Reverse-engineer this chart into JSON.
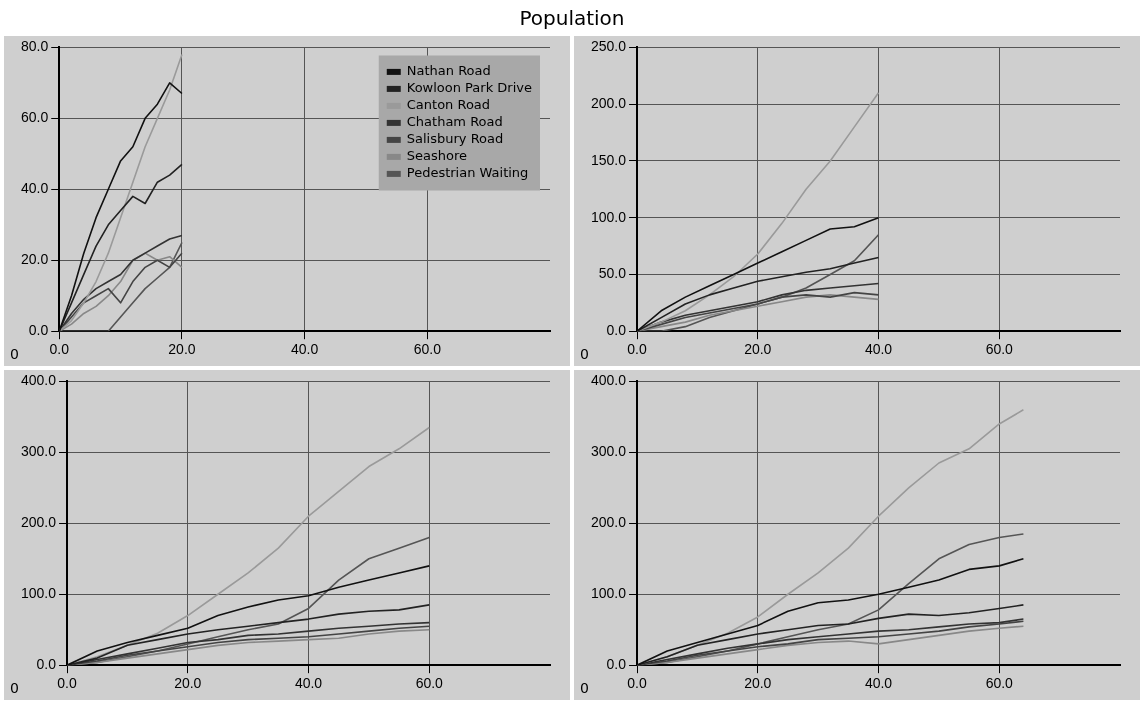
{
  "chart_data": [
    {
      "type": "line",
      "title": "Population",
      "annotations": [
        "0"
      ],
      "x": [
        0,
        2,
        4,
        6,
        8,
        10,
        12,
        14,
        16,
        18,
        20
      ],
      "xlim": [
        0,
        80
      ],
      "xticks": [
        {
          "value": 0,
          "label": "0.0"
        },
        {
          "value": 20,
          "label": "20.0"
        },
        {
          "value": 40,
          "label": "40.0"
        },
        {
          "value": 60,
          "label": "60.0"
        }
      ],
      "ylim": [
        0,
        80
      ],
      "yticks": [
        {
          "value": 0,
          "label": "0.0"
        },
        {
          "value": 20,
          "label": "20.0"
        },
        {
          "value": 40,
          "label": "40.0"
        },
        {
          "value": 60,
          "label": "60.0"
        },
        {
          "value": 80,
          "label": "80.0"
        }
      ],
      "grid": true,
      "legend": "top right",
      "series": [
        {
          "name": "Nathan Road",
          "color": "#111111",
          "values": [
            0,
            10,
            22,
            32,
            40,
            48,
            52,
            60,
            64,
            70,
            67
          ]
        },
        {
          "name": "Kowloon Park Drive",
          "color": "#222222",
          "values": [
            0,
            8,
            16,
            24,
            30,
            34,
            38,
            36,
            42,
            44,
            47
          ]
        },
        {
          "name": "Canton Road",
          "color": "#9a9a9a",
          "values": [
            0,
            3,
            8,
            14,
            22,
            32,
            42,
            52,
            60,
            68,
            78
          ]
        },
        {
          "name": "Chatham Road",
          "color": "#333333",
          "values": [
            0,
            5,
            9,
            12,
            14,
            16,
            20,
            22,
            24,
            26,
            27
          ]
        },
        {
          "name": "Salisbury Road",
          "color": "#444444",
          "values": [
            0,
            4,
            8,
            10,
            12,
            8,
            14,
            18,
            20,
            18,
            22
          ]
        },
        {
          "name": "Seashore",
          "color": "#888888",
          "values": [
            0,
            2,
            5,
            7,
            10,
            14,
            20,
            22,
            20,
            21,
            18
          ]
        },
        {
          "name": "Pedestrian Waiting",
          "color": "#555555",
          "values": [
            0,
            0,
            0,
            0,
            0,
            4,
            8,
            12,
            15,
            18,
            25
          ]
        }
      ]
    },
    {
      "type": "line",
      "annotations": [
        "0"
      ],
      "x": [
        0,
        4,
        8,
        12,
        16,
        20,
        24,
        28,
        32,
        36,
        40
      ],
      "xlim": [
        0,
        80
      ],
      "xticks": [
        {
          "value": 0,
          "label": "0.0"
        },
        {
          "value": 20,
          "label": "20.0"
        },
        {
          "value": 40,
          "label": "40.0"
        },
        {
          "value": 60,
          "label": "60.0"
        }
      ],
      "ylim": [
        0,
        250
      ],
      "yticks": [
        {
          "value": 0,
          "label": "0.0"
        },
        {
          "value": 50,
          "label": "50.0"
        },
        {
          "value": 100,
          "label": "100.0"
        },
        {
          "value": 150,
          "label": "150.0"
        },
        {
          "value": 200,
          "label": "200.0"
        },
        {
          "value": 250,
          "label": "250.0"
        }
      ],
      "grid": true,
      "series": [
        {
          "color": "#111111",
          "values": [
            0,
            18,
            30,
            40,
            50,
            60,
            70,
            80,
            90,
            92,
            100
          ]
        },
        {
          "color": "#222222",
          "values": [
            0,
            12,
            24,
            32,
            38,
            44,
            48,
            52,
            55,
            60,
            65
          ]
        },
        {
          "color": "#9a9a9a",
          "values": [
            0,
            8,
            18,
            32,
            48,
            68,
            95,
            125,
            150,
            180,
            210
          ]
        },
        {
          "color": "#333333",
          "values": [
            0,
            8,
            14,
            18,
            22,
            26,
            32,
            36,
            38,
            40,
            42
          ]
        },
        {
          "color": "#444444",
          "values": [
            0,
            6,
            12,
            16,
            20,
            24,
            30,
            32,
            30,
            34,
            32
          ]
        },
        {
          "color": "#888888",
          "values": [
            0,
            4,
            8,
            14,
            18,
            22,
            26,
            30,
            32,
            30,
            28
          ]
        },
        {
          "color": "#555555",
          "values": [
            0,
            0,
            4,
            12,
            18,
            24,
            30,
            38,
            50,
            62,
            85
          ]
        }
      ]
    },
    {
      "type": "line",
      "annotations": [
        "0"
      ],
      "x": [
        0,
        5,
        10,
        15,
        20,
        25,
        30,
        35,
        40,
        45,
        50,
        55,
        60
      ],
      "xlim": [
        0,
        80
      ],
      "xticks": [
        {
          "value": 0,
          "label": "0.0"
        },
        {
          "value": 20,
          "label": "20.0"
        },
        {
          "value": 40,
          "label": "40.0"
        },
        {
          "value": 60,
          "label": "60.0"
        }
      ],
      "ylim": [
        0,
        400
      ],
      "yticks": [
        {
          "value": 0,
          "label": "0.0"
        },
        {
          "value": 100,
          "label": "100.0"
        },
        {
          "value": 200,
          "label": "200.0"
        },
        {
          "value": 300,
          "label": "300.0"
        },
        {
          "value": 400,
          "label": "400.0"
        }
      ],
      "grid": true,
      "series": [
        {
          "color": "#111111",
          "values": [
            0,
            20,
            32,
            42,
            52,
            70,
            82,
            92,
            98,
            110,
            120,
            130,
            140
          ]
        },
        {
          "color": "#222222",
          "values": [
            0,
            10,
            28,
            36,
            44,
            50,
            55,
            60,
            65,
            72,
            76,
            78,
            85
          ]
        },
        {
          "color": "#9a9a9a",
          "values": [
            0,
            12,
            28,
            45,
            70,
            100,
            130,
            165,
            210,
            245,
            280,
            305,
            335
          ]
        },
        {
          "color": "#333333",
          "values": [
            0,
            8,
            16,
            24,
            32,
            36,
            42,
            44,
            48,
            52,
            55,
            58,
            60
          ]
        },
        {
          "color": "#444444",
          "values": [
            0,
            6,
            14,
            20,
            26,
            32,
            36,
            38,
            40,
            44,
            48,
            52,
            55
          ]
        },
        {
          "color": "#888888",
          "values": [
            0,
            4,
            10,
            16,
            22,
            28,
            32,
            34,
            36,
            38,
            44,
            48,
            50
          ]
        },
        {
          "color": "#555555",
          "values": [
            0,
            4,
            12,
            20,
            30,
            40,
            50,
            58,
            80,
            120,
            150,
            165,
            180
          ]
        }
      ]
    },
    {
      "type": "line",
      "annotations": [
        "0"
      ],
      "x": [
        0,
        5,
        10,
        15,
        20,
        25,
        30,
        35,
        40,
        45,
        50,
        55,
        60,
        64
      ],
      "xlim": [
        0,
        80
      ],
      "xticks": [
        {
          "value": 0,
          "label": "0.0"
        },
        {
          "value": 20,
          "label": "20.0"
        },
        {
          "value": 40,
          "label": "40.0"
        },
        {
          "value": 60,
          "label": "60.0"
        }
      ],
      "ylim": [
        0,
        400
      ],
      "yticks": [
        {
          "value": 0,
          "label": "0.0"
        },
        {
          "value": 100,
          "label": "100.0"
        },
        {
          "value": 200,
          "label": "200.0"
        },
        {
          "value": 300,
          "label": "300.0"
        },
        {
          "value": 400,
          "label": "400.0"
        }
      ],
      "grid": true,
      "series": [
        {
          "color": "#111111",
          "values": [
            0,
            20,
            32,
            44,
            56,
            76,
            88,
            92,
            100,
            110,
            120,
            135,
            140,
            150
          ]
        },
        {
          "color": "#222222",
          "values": [
            0,
            12,
            28,
            36,
            44,
            50,
            56,
            58,
            66,
            72,
            70,
            74,
            80,
            85
          ]
        },
        {
          "color": "#9a9a9a",
          "values": [
            0,
            12,
            28,
            45,
            68,
            100,
            130,
            165,
            210,
            250,
            285,
            305,
            340,
            360
          ]
        },
        {
          "color": "#333333",
          "values": [
            0,
            8,
            16,
            24,
            30,
            36,
            40,
            44,
            48,
            50,
            54,
            58,
            60,
            65
          ]
        },
        {
          "color": "#444444",
          "values": [
            0,
            6,
            14,
            20,
            26,
            30,
            36,
            38,
            40,
            44,
            48,
            54,
            58,
            62
          ]
        },
        {
          "color": "#888888",
          "values": [
            0,
            4,
            10,
            16,
            22,
            28,
            32,
            34,
            30,
            36,
            42,
            48,
            52,
            55
          ]
        },
        {
          "color": "#555555",
          "values": [
            0,
            4,
            12,
            20,
            30,
            40,
            50,
            58,
            78,
            115,
            150,
            170,
            180,
            185
          ]
        }
      ]
    }
  ]
}
